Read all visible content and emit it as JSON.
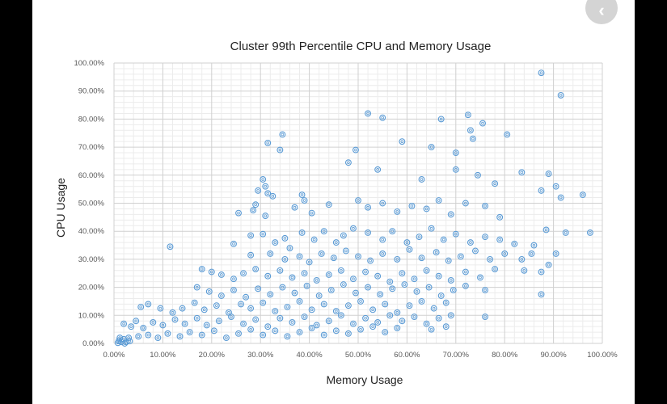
{
  "nav": {
    "icon": "chevron-left-icon",
    "glyph": "‹"
  },
  "chart_data": {
    "type": "scatter",
    "title": "Cluster 99th Percentile CPU and Memory Usage",
    "xlabel": "Memory Usage",
    "ylabel": "CPU Usage",
    "xlim": [
      0,
      100
    ],
    "ylim": [
      0,
      100
    ],
    "x_ticks": [
      "0.00%",
      "10.00%",
      "20.00%",
      "30.00%",
      "40.00%",
      "50.00%",
      "60.00%",
      "70.00%",
      "80.00%",
      "90.00%",
      "100.00%"
    ],
    "y_ticks": [
      "0.00%",
      "10.00%",
      "20.00%",
      "30.00%",
      "40.00%",
      "50.00%",
      "60.00%",
      "70.00%",
      "80.00%",
      "90.00%",
      "100.00%"
    ],
    "grid": true,
    "legend": "none",
    "marker_color": "#5b9bd5",
    "points": [
      [
        87.5,
        96.5
      ],
      [
        91.5,
        88.5
      ],
      [
        52,
        82
      ],
      [
        55,
        80.5
      ],
      [
        72.5,
        81.5
      ],
      [
        67,
        80
      ],
      [
        75.5,
        78.5
      ],
      [
        73,
        76
      ],
      [
        80.5,
        74.5
      ],
      [
        34.5,
        74.5
      ],
      [
        31.5,
        71.5
      ],
      [
        34,
        69
      ],
      [
        49.5,
        69
      ],
      [
        65,
        70
      ],
      [
        70,
        68
      ],
      [
        73.5,
        73
      ],
      [
        59,
        72
      ],
      [
        48,
        64.5
      ],
      [
        54,
        62
      ],
      [
        63,
        58.5
      ],
      [
        70,
        62
      ],
      [
        74.5,
        60
      ],
      [
        83.5,
        61
      ],
      [
        89,
        60.5
      ],
      [
        78,
        57
      ],
      [
        87.5,
        54.5
      ],
      [
        90.5,
        56
      ],
      [
        96,
        53
      ],
      [
        91.5,
        52
      ],
      [
        30.5,
        58.5
      ],
      [
        31,
        56
      ],
      [
        29.5,
        54.5
      ],
      [
        31.5,
        53.5
      ],
      [
        32.5,
        52.5
      ],
      [
        29,
        49.5
      ],
      [
        28.5,
        47.5
      ],
      [
        31,
        45.5
      ],
      [
        25.5,
        46.5
      ],
      [
        38.5,
        53
      ],
      [
        39,
        51
      ],
      [
        37,
        48.5
      ],
      [
        40.5,
        46.5
      ],
      [
        44,
        49.5
      ],
      [
        50,
        51
      ],
      [
        52,
        48.5
      ],
      [
        55,
        50
      ],
      [
        58,
        47
      ],
      [
        61,
        49
      ],
      [
        64,
        48
      ],
      [
        66.5,
        51
      ],
      [
        69,
        46
      ],
      [
        72,
        50
      ],
      [
        76,
        49
      ],
      [
        79,
        45
      ],
      [
        28,
        38.5
      ],
      [
        30.5,
        39
      ],
      [
        33,
        36
      ],
      [
        35,
        37.5
      ],
      [
        36,
        34
      ],
      [
        38.5,
        39.5
      ],
      [
        41,
        37
      ],
      [
        43,
        40
      ],
      [
        45.5,
        36
      ],
      [
        47,
        38.5
      ],
      [
        49,
        41
      ],
      [
        52,
        39.5
      ],
      [
        55,
        37
      ],
      [
        57,
        40
      ],
      [
        60,
        36
      ],
      [
        62.5,
        38
      ],
      [
        65,
        41
      ],
      [
        67.5,
        37
      ],
      [
        70,
        39
      ],
      [
        73,
        36
      ],
      [
        76,
        38
      ],
      [
        79,
        37
      ],
      [
        82,
        35.5
      ],
      [
        86,
        35
      ],
      [
        88.5,
        40.5
      ],
      [
        92.5,
        39.5
      ],
      [
        97.5,
        39.5
      ],
      [
        85.5,
        32
      ],
      [
        11.5,
        34.5
      ],
      [
        24.5,
        35.5
      ],
      [
        28,
        31.5
      ],
      [
        32,
        32
      ],
      [
        35,
        30
      ],
      [
        38,
        31
      ],
      [
        40,
        29
      ],
      [
        42.5,
        32
      ],
      [
        45,
        30.5
      ],
      [
        47.5,
        33
      ],
      [
        50,
        31
      ],
      [
        52.5,
        29.5
      ],
      [
        55,
        32
      ],
      [
        58,
        30
      ],
      [
        60.5,
        33.5
      ],
      [
        63,
        30.5
      ],
      [
        66,
        32.5
      ],
      [
        68.5,
        29.5
      ],
      [
        71,
        31
      ],
      [
        74,
        33
      ],
      [
        77,
        30
      ],
      [
        80,
        32
      ],
      [
        83.5,
        30
      ],
      [
        89,
        28
      ],
      [
        90.5,
        32
      ],
      [
        18,
        26.5
      ],
      [
        20,
        25.5
      ],
      [
        22,
        24.5
      ],
      [
        24.5,
        23
      ],
      [
        26.5,
        25
      ],
      [
        29,
        26.5
      ],
      [
        31.5,
        24
      ],
      [
        34,
        26
      ],
      [
        36.5,
        23.5
      ],
      [
        39,
        25
      ],
      [
        41.5,
        22.5
      ],
      [
        44,
        24.5
      ],
      [
        46.5,
        26
      ],
      [
        49,
        23
      ],
      [
        51.5,
        25.5
      ],
      [
        54,
        24
      ],
      [
        56.5,
        22
      ],
      [
        59,
        25
      ],
      [
        61.5,
        23
      ],
      [
        64,
        26
      ],
      [
        66.5,
        24
      ],
      [
        69,
        22.5
      ],
      [
        72,
        25.5
      ],
      [
        75,
        23.5
      ],
      [
        78,
        26.5
      ],
      [
        84,
        26
      ],
      [
        87.5,
        25.5
      ],
      [
        17,
        20
      ],
      [
        19.5,
        18.5
      ],
      [
        22,
        17
      ],
      [
        24.5,
        19
      ],
      [
        27,
        16.5
      ],
      [
        29.5,
        19.5
      ],
      [
        32,
        17.5
      ],
      [
        34.5,
        20
      ],
      [
        37,
        18
      ],
      [
        39.5,
        20.5
      ],
      [
        42,
        17
      ],
      [
        44.5,
        19
      ],
      [
        47,
        21
      ],
      [
        49.5,
        18
      ],
      [
        52,
        20
      ],
      [
        54.5,
        17.5
      ],
      [
        57,
        19.5
      ],
      [
        59.5,
        21
      ],
      [
        62,
        18.5
      ],
      [
        64.5,
        20
      ],
      [
        67,
        17
      ],
      [
        69.5,
        19
      ],
      [
        72,
        20.5
      ],
      [
        76,
        19
      ],
      [
        87.5,
        17.5
      ],
      [
        5.5,
        13
      ],
      [
        7,
        14
      ],
      [
        9.5,
        12.5
      ],
      [
        12,
        11
      ],
      [
        14,
        12.5
      ],
      [
        16.5,
        14.5
      ],
      [
        18.5,
        12
      ],
      [
        21,
        13.5
      ],
      [
        23.5,
        11
      ],
      [
        26,
        14
      ],
      [
        28,
        12.5
      ],
      [
        30.5,
        14.5
      ],
      [
        33,
        11.5
      ],
      [
        35.5,
        13
      ],
      [
        38,
        15
      ],
      [
        40.5,
        12
      ],
      [
        43,
        14
      ],
      [
        45.5,
        11.5
      ],
      [
        48,
        13.5
      ],
      [
        50.5,
        15
      ],
      [
        53,
        12
      ],
      [
        55.5,
        14
      ],
      [
        58,
        11
      ],
      [
        60.5,
        13.5
      ],
      [
        63,
        15
      ],
      [
        65.5,
        12.5
      ],
      [
        68,
        14.5
      ],
      [
        2,
        7
      ],
      [
        3.5,
        6
      ],
      [
        4.5,
        8
      ],
      [
        6,
        5.5
      ],
      [
        8,
        7.5
      ],
      [
        10,
        6.5
      ],
      [
        12.5,
        8.5
      ],
      [
        14.5,
        7
      ],
      [
        17,
        9
      ],
      [
        19,
        6.5
      ],
      [
        21.5,
        8
      ],
      [
        24,
        9.5
      ],
      [
        26.5,
        7
      ],
      [
        29,
        8.5
      ],
      [
        31.5,
        6
      ],
      [
        34,
        9
      ],
      [
        36.5,
        7.5
      ],
      [
        39,
        9.5
      ],
      [
        41.5,
        6.5
      ],
      [
        44,
        8
      ],
      [
        46.5,
        10
      ],
      [
        49,
        7
      ],
      [
        51.5,
        9
      ],
      [
        54,
        7.5
      ],
      [
        56.5,
        10
      ],
      [
        59,
        8
      ],
      [
        61.5,
        9.5
      ],
      [
        64,
        7
      ],
      [
        66.5,
        9
      ],
      [
        69,
        10
      ],
      [
        76,
        9.5
      ],
      [
        1,
        1
      ],
      [
        1.5,
        0.5
      ],
      [
        2,
        1.5
      ],
      [
        2.5,
        0.5
      ],
      [
        3,
        2
      ],
      [
        1.2,
        2
      ],
      [
        2.2,
        0
      ],
      [
        0.8,
        0.2
      ],
      [
        3.2,
        0.8
      ],
      [
        5,
        2.5
      ],
      [
        7,
        3
      ],
      [
        9,
        2
      ],
      [
        11,
        3.5
      ],
      [
        13.5,
        2.5
      ],
      [
        15.5,
        4
      ],
      [
        18,
        3
      ],
      [
        20.5,
        4.5
      ],
      [
        23,
        2
      ],
      [
        25.5,
        3.5
      ],
      [
        28,
        5
      ],
      [
        30.5,
        3
      ],
      [
        33,
        4.5
      ],
      [
        35.5,
        2.5
      ],
      [
        38,
        4
      ],
      [
        40.5,
        5.5
      ],
      [
        43,
        3
      ],
      [
        45.5,
        4.5
      ],
      [
        48,
        3.5
      ],
      [
        50.5,
        5
      ],
      [
        53,
        6
      ],
      [
        55.5,
        4
      ],
      [
        58,
        5.5
      ],
      [
        65,
        5
      ],
      [
        68,
        6
      ]
    ]
  }
}
